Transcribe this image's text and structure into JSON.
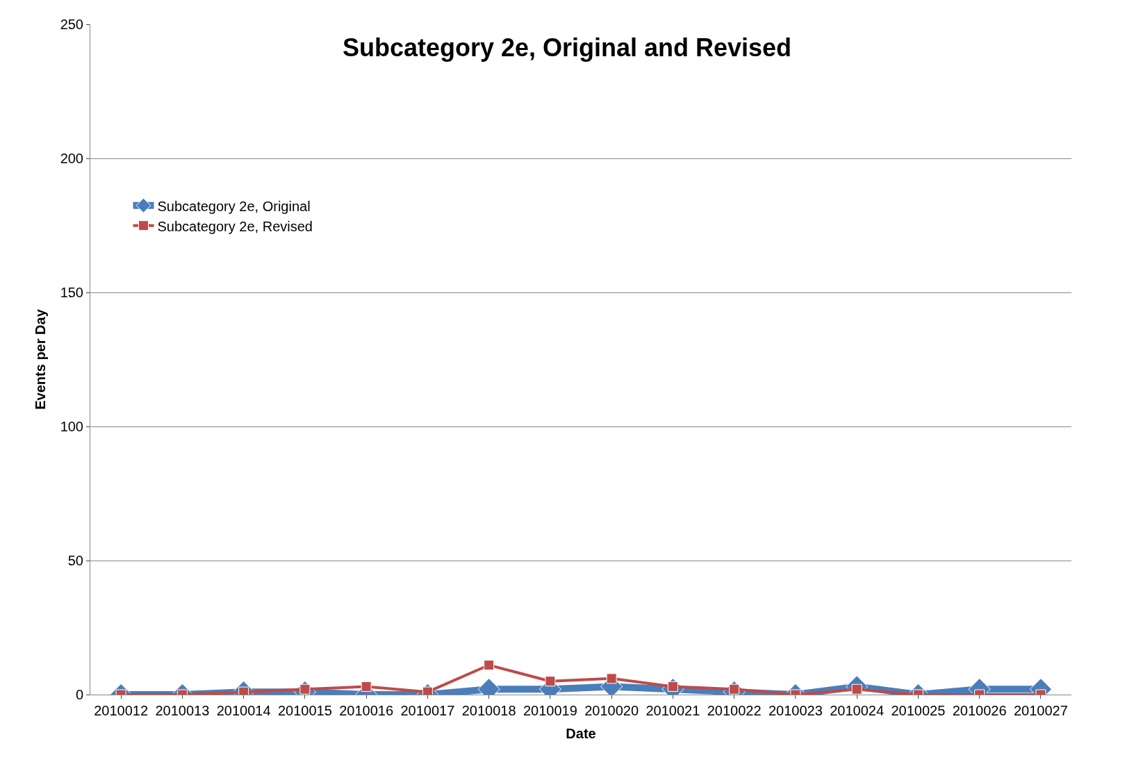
{
  "chart_data": {
    "type": "line",
    "title": "Subcategory 2e, Original and Revised",
    "xlabel": "Date",
    "ylabel": "Events per Day",
    "categories": [
      "2010012",
      "2010013",
      "2010014",
      "2010015",
      "2010016",
      "2010017",
      "2010018",
      "2010019",
      "2010020",
      "2010021",
      "2010022",
      "2010023",
      "2010024",
      "2010025",
      "2010026",
      "2010027"
    ],
    "series": [
      {
        "name": "Subcategory 2e, Original",
        "color": "#4a7ebb",
        "marker": "diamond",
        "values": [
          0,
          0,
          1,
          1,
          0,
          0,
          2,
          2,
          3,
          2,
          1,
          0,
          3,
          0,
          2,
          2
        ]
      },
      {
        "name": "Subcategory 2e, Revised",
        "color": "#be4b48",
        "marker": "square",
        "values": [
          0,
          0,
          1,
          2,
          3,
          1,
          11,
          5,
          6,
          3,
          2,
          0,
          2,
          0,
          0,
          0
        ]
      }
    ],
    "ylim": [
      0,
      250
    ],
    "yticks": [
      0,
      50,
      100,
      150,
      200,
      250
    ],
    "grid": "y",
    "legend": "top left"
  }
}
